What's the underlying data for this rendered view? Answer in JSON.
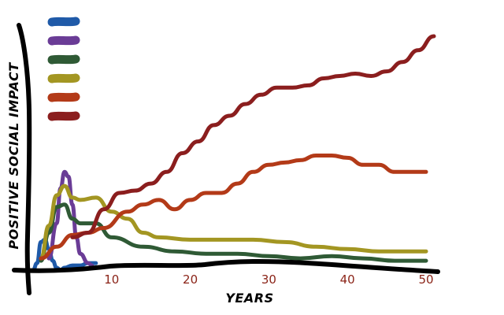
{
  "chart_data": {
    "type": "line",
    "title": "",
    "xlabel": "YEARS",
    "ylabel": "POSITIVE SOCIAL IMPACT",
    "xlim": [
      0,
      51
    ],
    "ylim": [
      0,
      100
    ],
    "x_ticks": [
      10,
      20,
      30,
      40,
      50
    ],
    "grid": false,
    "legend": "top-left swatches without names",
    "series": [
      {
        "color": "#1f5aa8",
        "x": [
          0,
          0.5,
          1,
          1.5,
          2,
          2.5,
          3,
          3.5,
          4,
          5,
          6,
          7,
          8
        ],
        "y": [
          0,
          3,
          12,
          13,
          9,
          4,
          1,
          0,
          1,
          2,
          2,
          3,
          3
        ]
      },
      {
        "color": "#6a3c96",
        "x": [
          2,
          3,
          3.5,
          4,
          4.5,
          5,
          5.5,
          6,
          7,
          7.5
        ],
        "y": [
          5,
          20,
          35,
          42,
          40,
          28,
          14,
          7,
          3,
          2
        ]
      },
      {
        "color": "#2f5a35",
        "x": [
          1,
          2,
          3,
          4,
          5,
          6,
          8,
          10,
          14,
          18,
          22,
          26,
          30,
          34,
          38,
          42,
          46,
          50
        ],
        "y": [
          4,
          16,
          27,
          28,
          22,
          20,
          20,
          14,
          10,
          8,
          7,
          7,
          6,
          5,
          6,
          5,
          4,
          4
        ]
      },
      {
        "color": "#a39622",
        "x": [
          1,
          2,
          3,
          4,
          5,
          6,
          8,
          10,
          12,
          14,
          16,
          20,
          24,
          28,
          32,
          36,
          40,
          44,
          48,
          50
        ],
        "y": [
          5,
          19,
          32,
          36,
          31,
          30,
          31,
          25,
          22,
          16,
          14,
          13,
          13,
          13,
          12,
          10,
          9,
          8,
          8,
          8
        ]
      },
      {
        "color": "#b33a18",
        "x": [
          1,
          3,
          5,
          7,
          9,
          12,
          14,
          16,
          18,
          20,
          22,
          24,
          26,
          28,
          30,
          32,
          34,
          36,
          38,
          40,
          42,
          44,
          46,
          48,
          50
        ],
        "y": [
          5,
          10,
          15,
          16,
          18,
          25,
          28,
          30,
          26,
          30,
          33,
          33,
          37,
          42,
          45,
          46,
          47,
          49,
          49,
          48,
          45,
          45,
          42,
          42,
          42
        ]
      },
      {
        "color": "#8b1e1e",
        "x": [
          5,
          7,
          9,
          11,
          13,
          15,
          17,
          19,
          21,
          23,
          25,
          27,
          29,
          31,
          33,
          35,
          37,
          39,
          41,
          43,
          45,
          47,
          49,
          51
        ],
        "y": [
          14,
          16,
          26,
          33,
          34,
          37,
          42,
          50,
          55,
          62,
          66,
          71,
          75,
          78,
          78,
          79,
          82,
          83,
          84,
          83,
          85,
          89,
          94,
          100
        ]
      }
    ]
  }
}
